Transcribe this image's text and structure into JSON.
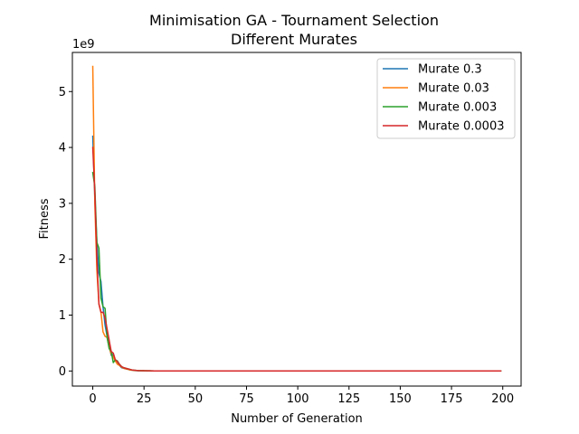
{
  "chart_data": {
    "type": "line",
    "title": "Minimisation GA - Tournament Selection",
    "subtitle": "Different Murates",
    "xlabel": "Number of Generation",
    "ylabel": "Fitness",
    "y_offset_label": "1e9",
    "xlim": [
      -9.95,
      208.95
    ],
    "ylim": [
      -0.27,
      5.7
    ],
    "xticks": [
      0,
      25,
      50,
      75,
      100,
      125,
      150,
      175,
      200
    ],
    "yticks": [
      0,
      1,
      2,
      3,
      4,
      5
    ],
    "grid": false,
    "legend_position": "top-right",
    "y_unit_scale": 1000000000,
    "series": [
      {
        "name": "Murate 0.3",
        "color": "#1f77b4",
        "x": [
          0,
          1,
          2,
          3,
          4,
          5,
          6,
          7,
          8,
          9,
          10,
          11,
          12,
          13,
          14,
          15,
          16,
          17,
          18,
          19,
          20,
          22,
          25,
          30,
          35,
          40,
          50,
          60,
          80,
          100,
          120,
          150,
          175,
          199
        ],
        "y": [
          4.2,
          3.1,
          2.3,
          1.75,
          1.6,
          1.15,
          0.82,
          0.62,
          0.45,
          0.28,
          0.3,
          0.18,
          0.15,
          0.1,
          0.06,
          0.05,
          0.04,
          0.03,
          0.02,
          0.015,
          0.01,
          0.006,
          0.004,
          0.002,
          0.001,
          0.0008,
          0.0005,
          0.0003,
          0.0002,
          0.0001,
          0.0001,
          0.0001,
          0.0001,
          0.0001
        ]
      },
      {
        "name": "Murate 0.03",
        "color": "#ff7f0e",
        "x": [
          0,
          1,
          2,
          3,
          4,
          5,
          6,
          7,
          8,
          9,
          10,
          11,
          12,
          13,
          14,
          15,
          16,
          17,
          18,
          19,
          20,
          22,
          25,
          30,
          35,
          40,
          50,
          60,
          80,
          100,
          120,
          150,
          175,
          199
        ],
        "y": [
          5.45,
          3.0,
          1.8,
          1.2,
          1.05,
          0.7,
          0.62,
          0.6,
          0.42,
          0.3,
          0.25,
          0.18,
          0.12,
          0.1,
          0.07,
          0.05,
          0.04,
          0.03,
          0.02,
          0.015,
          0.01,
          0.007,
          0.004,
          0.002,
          0.001,
          0.0008,
          0.0005,
          0.0003,
          0.0002,
          0.0001,
          0.0001,
          0.0001,
          0.0001,
          0.0001
        ]
      },
      {
        "name": "Murate 0.003",
        "color": "#2ca02c",
        "x": [
          0,
          1,
          2,
          3,
          4,
          5,
          6,
          7,
          8,
          9,
          10,
          11,
          12,
          13,
          14,
          15,
          16,
          17,
          18,
          19,
          20,
          22,
          25,
          30,
          35,
          40,
          50,
          60,
          80,
          100,
          120,
          150,
          175,
          199
        ],
        "y": [
          3.55,
          3.3,
          2.3,
          2.2,
          1.3,
          1.15,
          1.12,
          0.6,
          0.4,
          0.35,
          0.15,
          0.2,
          0.18,
          0.12,
          0.08,
          0.06,
          0.05,
          0.04,
          0.03,
          0.02,
          0.015,
          0.008,
          0.004,
          0.002,
          0.001,
          0.0008,
          0.0005,
          0.0003,
          0.0002,
          0.0001,
          0.0001,
          0.0001,
          0.0001,
          0.0001
        ]
      },
      {
        "name": "Murate 0.0003",
        "color": "#d62728",
        "x": [
          0,
          1,
          2,
          3,
          4,
          5,
          6,
          7,
          8,
          9,
          10,
          11,
          12,
          13,
          14,
          15,
          16,
          17,
          18,
          19,
          20,
          22,
          25,
          30,
          35,
          40,
          50,
          60,
          80,
          100,
          120,
          150,
          175,
          199
        ],
        "y": [
          4.0,
          3.2,
          2.0,
          1.2,
          1.05,
          1.05,
          0.95,
          0.75,
          0.55,
          0.35,
          0.32,
          0.2,
          0.17,
          0.12,
          0.08,
          0.06,
          0.05,
          0.04,
          0.03,
          0.02,
          0.015,
          0.008,
          0.004,
          0.002,
          0.001,
          0.0008,
          0.0005,
          0.0003,
          0.0002,
          0.0001,
          0.0001,
          0.0001,
          0.0001,
          0.0001
        ]
      }
    ]
  }
}
